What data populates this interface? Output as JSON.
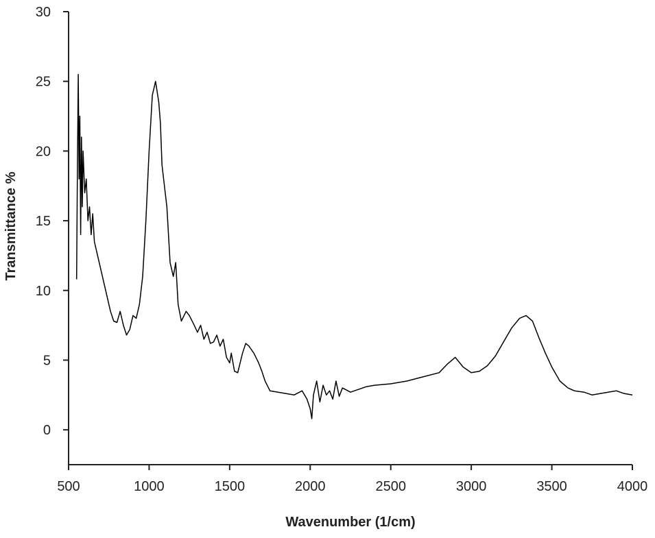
{
  "chart_data": {
    "type": "line",
    "x_label": "Wavenumber (1/cm)",
    "y_label": "Transmittance %",
    "color": "#000000",
    "xlim": [
      500,
      4000
    ],
    "xticks": [
      500,
      1000,
      1500,
      2000,
      2500,
      3000,
      3500,
      4000
    ],
    "ylim": [
      -2.5,
      30
    ],
    "yticks": [
      0,
      5,
      10,
      15,
      20,
      25,
      30
    ],
    "x": [
      550,
      555,
      560,
      565,
      570,
      575,
      580,
      585,
      590,
      600,
      610,
      620,
      630,
      640,
      650,
      660,
      680,
      700,
      720,
      740,
      760,
      780,
      800,
      820,
      840,
      860,
      880,
      900,
      920,
      940,
      960,
      980,
      1000,
      1020,
      1040,
      1060,
      1070,
      1080,
      1100,
      1110,
      1130,
      1150,
      1165,
      1180,
      1200,
      1230,
      1250,
      1280,
      1300,
      1320,
      1340,
      1360,
      1380,
      1400,
      1420,
      1440,
      1460,
      1480,
      1500,
      1510,
      1530,
      1550,
      1580,
      1600,
      1620,
      1650,
      1680,
      1700,
      1720,
      1750,
      1800,
      1850,
      1900,
      1950,
      1980,
      2000,
      2010,
      2020,
      2040,
      2060,
      2080,
      2100,
      2120,
      2140,
      2160,
      2180,
      2200,
      2250,
      2300,
      2350,
      2400,
      2500,
      2600,
      2700,
      2800,
      2850,
      2900,
      2950,
      3000,
      3050,
      3100,
      3150,
      3200,
      3250,
      3300,
      3340,
      3380,
      3420,
      3460,
      3500,
      3550,
      3600,
      3640,
      3700,
      3750,
      3800,
      3850,
      3900,
      3950,
      4000
    ],
    "values": [
      10.8,
      19,
      25.5,
      18,
      22.5,
      14,
      21,
      16,
      20,
      17,
      18,
      15,
      16,
      14,
      15.5,
      13.5,
      12.5,
      11.5,
      10.5,
      9.5,
      8.5,
      7.8,
      7.7,
      8.5,
      7.5,
      6.8,
      7.2,
      8.2,
      8,
      9,
      11,
      15,
      20,
      24,
      25,
      23.5,
      22,
      19,
      17,
      16,
      12,
      11,
      12,
      9,
      7.8,
      8.5,
      8.2,
      7.5,
      7,
      7.5,
      6.5,
      7,
      6.2,
      6.3,
      6.8,
      6,
      6.5,
      5.2,
      4.8,
      5.5,
      4.2,
      4.1,
      5.5,
      6.2,
      6,
      5.5,
      4.8,
      4.2,
      3.5,
      2.8,
      2.7,
      2.6,
      2.5,
      2.8,
      2.2,
      1.5,
      0.8,
      2.5,
      3.5,
      2,
      3.2,
      2.5,
      2.8,
      2.2,
      3.5,
      2.4,
      3,
      2.7,
      2.9,
      3.1,
      3.2,
      3.3,
      3.5,
      3.8,
      4.1,
      4.7,
      5.2,
      4.5,
      4.1,
      4.2,
      4.6,
      5.3,
      6.3,
      7.3,
      8,
      8.2,
      7.8,
      6.6,
      5.5,
      4.5,
      3.5,
      3,
      2.8,
      2.7,
      2.5,
      2.6,
      2.7,
      2.8,
      2.6,
      2.5
    ]
  }
}
